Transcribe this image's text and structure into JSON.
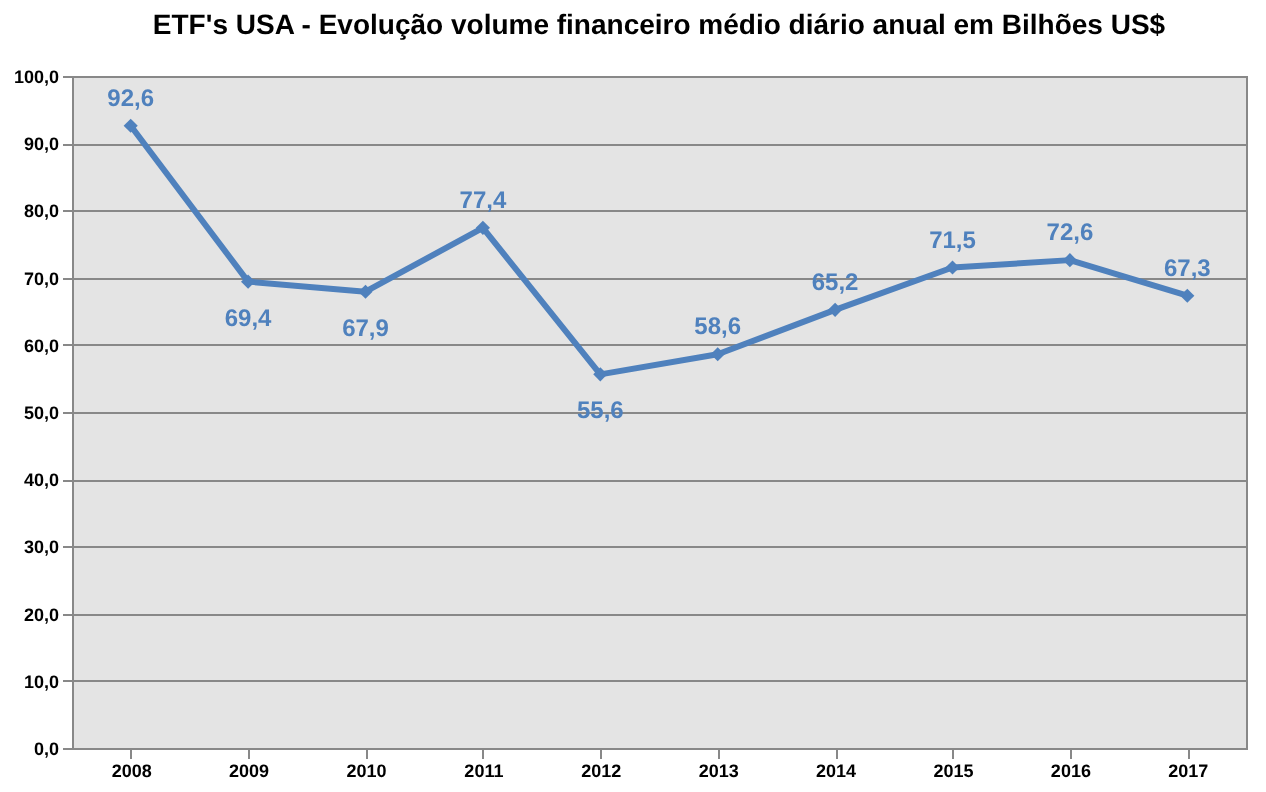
{
  "chart_data": {
    "type": "line",
    "title": "ETF's USA - Evolução volume financeiro médio diário anual em Bilhões US$",
    "categories": [
      "2008",
      "2009",
      "2010",
      "2011",
      "2012",
      "2013",
      "2014",
      "2015",
      "2016",
      "2017"
    ],
    "series": [
      {
        "color": "#4f81bd",
        "values": [
          92.6,
          69.4,
          67.9,
          77.4,
          55.6,
          58.6,
          65.2,
          71.5,
          72.6,
          67.3
        ],
        "value_labels": [
          "92,6",
          "69,4",
          "67,9",
          "77,4",
          "55,6",
          "58,6",
          "65,2",
          "71,5",
          "72,6",
          "67,3"
        ]
      }
    ],
    "ylim": [
      0,
      100
    ],
    "yticks": [
      {
        "value": 0,
        "label": "0,0"
      },
      {
        "value": 10,
        "label": "10,0"
      },
      {
        "value": 20,
        "label": "20,0"
      },
      {
        "value": 30,
        "label": "30,0"
      },
      {
        "value": 40,
        "label": "40,0"
      },
      {
        "value": 50,
        "label": "50,0"
      },
      {
        "value": 60,
        "label": "60,0"
      },
      {
        "value": 70,
        "label": "70,0"
      },
      {
        "value": 80,
        "label": "80,0"
      },
      {
        "value": 90,
        "label": "90,0"
      },
      {
        "value": 100,
        "label": "100,0"
      }
    ],
    "grid": "y",
    "marker": "diamond",
    "line_style": "solid"
  }
}
